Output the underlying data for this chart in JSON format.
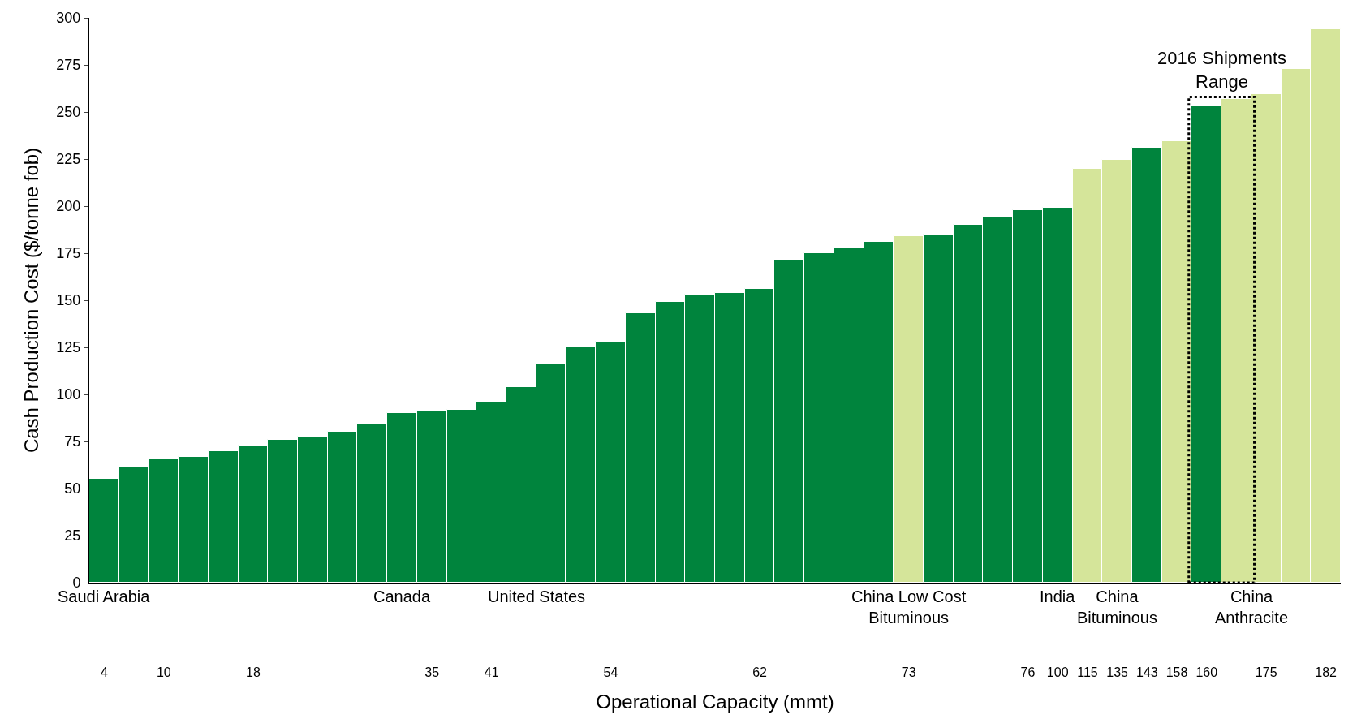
{
  "chart_data": {
    "type": "bar",
    "xlabel": "Operational Capacity (mmt)",
    "ylabel": "Cash Production Cost ($/tonne fob)",
    "categories": [
      "4",
      null,
      "10",
      null,
      null,
      "18",
      null,
      null,
      null,
      null,
      null,
      "35",
      null,
      "41",
      null,
      null,
      null,
      "54",
      null,
      null,
      null,
      null,
      "62",
      null,
      null,
      null,
      null,
      "73",
      null,
      null,
      null,
      "76",
      "100",
      "115",
      "135",
      "143",
      "158",
      "160",
      null,
      "175",
      null,
      "182"
    ],
    "values": [
      55,
      61,
      65.5,
      67,
      70,
      73,
      76,
      77.5,
      80,
      84,
      90,
      91,
      92,
      96,
      104,
      116,
      125,
      128,
      143,
      149,
      153,
      154,
      156,
      171,
      175,
      178,
      181,
      184,
      185,
      190,
      194,
      198,
      199,
      220,
      224.5,
      231,
      234.5,
      253,
      257,
      259.5,
      273,
      294
    ],
    "colors": [
      "#00843d",
      "#00843d",
      "#00843d",
      "#00843d",
      "#00843d",
      "#00843d",
      "#00843d",
      "#00843d",
      "#00843d",
      "#00843d",
      "#00843d",
      "#00843d",
      "#00843d",
      "#00843d",
      "#00843d",
      "#00843d",
      "#00843d",
      "#00843d",
      "#00843d",
      "#00843d",
      "#00843d",
      "#00843d",
      "#00843d",
      "#00843d",
      "#00843d",
      "#00843d",
      "#00843d",
      "#d5e59a",
      "#00843d",
      "#00843d",
      "#00843d",
      "#00843d",
      "#00843d",
      "#d5e59a",
      "#d5e59a",
      "#00843d",
      "#d5e59a",
      "#00843d",
      "#d5e59a",
      "#d5e59a",
      "#d5e59a",
      "#d5e59a"
    ],
    "ylim": [
      0,
      300
    ],
    "yticks": [
      0,
      25,
      50,
      75,
      100,
      125,
      150,
      175,
      200,
      225,
      250,
      275,
      300
    ],
    "annotations": [
      "Saudi Arabia",
      "Canada",
      "United States",
      "China Low Cost Bituminous",
      "India",
      "China Bituminous",
      "China Anthracite",
      "2016 Shipments Range"
    ]
  }
}
